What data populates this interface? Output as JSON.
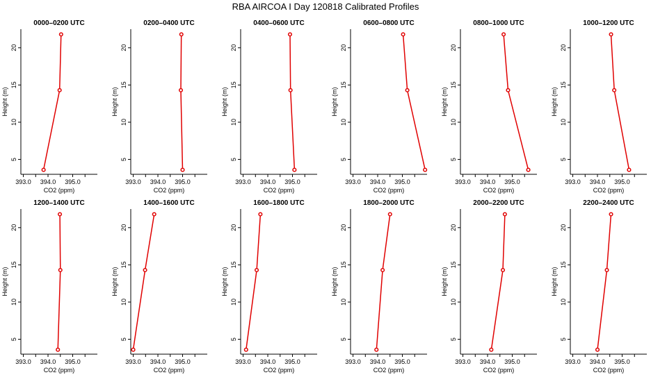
{
  "title": "RBA AIRCOA I  Day 120818  Calibrated Profiles",
  "colors": {
    "line": "#e00000",
    "axis": "#000000"
  },
  "chart_data": [
    {
      "type": "line",
      "title": "0000–0200 UTC",
      "xlabel": "CO2 (ppm)",
      "ylabel": "Height (m)",
      "xlim": [
        392.9,
        396.0
      ],
      "ylim": [
        3,
        22.5
      ],
      "xticks": [
        "393.0",
        "394.0",
        "395.0"
      ],
      "yticks": [
        "5",
        "10",
        "15",
        "20"
      ],
      "grid": false,
      "series": [
        {
          "x": [
            393.82,
            394.47,
            394.53
          ],
          "y": [
            3.6,
            14.3,
            21.8
          ]
        }
      ]
    },
    {
      "type": "line",
      "title": "0200–0400 UTC",
      "xlabel": "CO2 (ppm)",
      "ylabel": "Height (m)",
      "xlim": [
        392.9,
        396.0
      ],
      "ylim": [
        3,
        22.5
      ],
      "xticks": [
        "393.0",
        "394.0",
        "395.0"
      ],
      "yticks": [
        "5",
        "10",
        "15",
        "20"
      ],
      "grid": false,
      "series": [
        {
          "x": [
            395.0,
            394.93,
            394.95
          ],
          "y": [
            3.6,
            14.3,
            21.8
          ]
        }
      ]
    },
    {
      "type": "line",
      "title": "0400–0600 UTC",
      "xlabel": "CO2 (ppm)",
      "ylabel": "Height (m)",
      "xlim": [
        392.9,
        396.0
      ],
      "ylim": [
        3,
        22.5
      ],
      "xticks": [
        "393.0",
        "394.0",
        "395.0"
      ],
      "yticks": [
        "5",
        "10",
        "15",
        "20"
      ],
      "grid": false,
      "series": [
        {
          "x": [
            395.08,
            394.92,
            394.9
          ],
          "y": [
            3.6,
            14.3,
            21.8
          ]
        }
      ]
    },
    {
      "type": "line",
      "title": "0600–0800 UTC",
      "xlabel": "CO2 (ppm)",
      "ylabel": "Height (m)",
      "xlim": [
        392.9,
        396.0
      ],
      "ylim": [
        3,
        22.5
      ],
      "xticks": [
        "393.0",
        "394.0",
        "395.0"
      ],
      "yticks": [
        "5",
        "10",
        "15",
        "20"
      ],
      "grid": false,
      "series": [
        {
          "x": [
            395.92,
            395.2,
            395.03
          ],
          "y": [
            3.6,
            14.3,
            21.8
          ]
        }
      ]
    },
    {
      "type": "line",
      "title": "0800–1000 UTC",
      "xlabel": "CO2 (ppm)",
      "ylabel": "Height (m)",
      "xlim": [
        392.9,
        396.0
      ],
      "ylim": [
        3,
        22.5
      ],
      "xticks": [
        "393.0",
        "394.0",
        "395.0"
      ],
      "yticks": [
        "5",
        "10",
        "15",
        "20"
      ],
      "grid": false,
      "series": [
        {
          "x": [
            395.65,
            394.83,
            394.65
          ],
          "y": [
            3.6,
            14.3,
            21.8
          ]
        }
      ]
    },
    {
      "type": "line",
      "title": "1000–1200 UTC",
      "xlabel": "CO2 (ppm)",
      "ylabel": "Height (m)",
      "xlim": [
        392.9,
        396.0
      ],
      "ylim": [
        3,
        22.5
      ],
      "xticks": [
        "393.0",
        "394.0",
        "395.0"
      ],
      "yticks": [
        "5",
        "10",
        "15",
        "20"
      ],
      "grid": false,
      "series": [
        {
          "x": [
            395.28,
            394.68,
            394.55
          ],
          "y": [
            3.6,
            14.3,
            21.8
          ]
        }
      ]
    },
    {
      "type": "line",
      "title": "1200–1400 UTC",
      "xlabel": "CO2 (ppm)",
      "ylabel": "Height (m)",
      "xlim": [
        392.9,
        396.0
      ],
      "ylim": [
        3,
        22.5
      ],
      "xticks": [
        "393.0",
        "394.0",
        "395.0"
      ],
      "yticks": [
        "5",
        "10",
        "15",
        "20"
      ],
      "grid": false,
      "series": [
        {
          "x": [
            394.4,
            394.5,
            394.48
          ],
          "y": [
            3.6,
            14.3,
            21.8
          ]
        }
      ]
    },
    {
      "type": "line",
      "title": "1400–1600 UTC",
      "xlabel": "CO2 (ppm)",
      "ylabel": "Height (m)",
      "xlim": [
        392.9,
        396.0
      ],
      "ylim": [
        3,
        22.5
      ],
      "xticks": [
        "393.0",
        "394.0",
        "395.0"
      ],
      "yticks": [
        "5",
        "10",
        "15",
        "20"
      ],
      "grid": false,
      "series": [
        {
          "x": [
            393.0,
            393.48,
            393.85
          ],
          "y": [
            3.6,
            14.3,
            21.8
          ]
        }
      ]
    },
    {
      "type": "line",
      "title": "1600–1800 UTC",
      "xlabel": "CO2 (ppm)",
      "ylabel": "Height (m)",
      "xlim": [
        392.9,
        396.0
      ],
      "ylim": [
        3,
        22.5
      ],
      "xticks": [
        "393.0",
        "394.0",
        "395.0"
      ],
      "yticks": [
        "5",
        "10",
        "15",
        "20"
      ],
      "grid": false,
      "series": [
        {
          "x": [
            393.12,
            393.55,
            393.7
          ],
          "y": [
            3.6,
            14.3,
            21.8
          ]
        }
      ]
    },
    {
      "type": "line",
      "title": "1800–2000 UTC",
      "xlabel": "CO2 (ppm)",
      "ylabel": "Height (m)",
      "xlim": [
        392.9,
        396.0
      ],
      "ylim": [
        3,
        22.5
      ],
      "xticks": [
        "393.0",
        "394.0",
        "395.0"
      ],
      "yticks": [
        "5",
        "10",
        "15",
        "20"
      ],
      "grid": false,
      "series": [
        {
          "x": [
            393.95,
            394.2,
            394.5
          ],
          "y": [
            3.6,
            14.3,
            21.8
          ]
        }
      ]
    },
    {
      "type": "line",
      "title": "2000–2200 UTC",
      "xlabel": "CO2 (ppm)",
      "ylabel": "Height (m)",
      "xlim": [
        392.9,
        396.0
      ],
      "ylim": [
        3,
        22.5
      ],
      "xticks": [
        "393.0",
        "394.0",
        "395.0"
      ],
      "yticks": [
        "5",
        "10",
        "15",
        "20"
      ],
      "grid": false,
      "series": [
        {
          "x": [
            394.15,
            394.62,
            394.7
          ],
          "y": [
            3.6,
            14.3,
            21.8
          ]
        }
      ]
    },
    {
      "type": "line",
      "title": "2200–2400 UTC",
      "xlabel": "CO2 (ppm)",
      "ylabel": "Height (m)",
      "xlim": [
        392.9,
        396.0
      ],
      "ylim": [
        3,
        22.5
      ],
      "xticks": [
        "393.0",
        "394.0",
        "395.0"
      ],
      "yticks": [
        "5",
        "10",
        "15",
        "20"
      ],
      "grid": false,
      "series": [
        {
          "x": [
            394.0,
            394.38,
            394.55
          ],
          "y": [
            3.6,
            14.3,
            21.8
          ]
        }
      ]
    }
  ]
}
